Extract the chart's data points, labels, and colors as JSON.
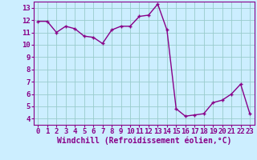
{
  "x": [
    0,
    1,
    2,
    3,
    4,
    5,
    6,
    7,
    8,
    9,
    10,
    11,
    12,
    13,
    14,
    15,
    16,
    17,
    18,
    19,
    20,
    21,
    22,
    23
  ],
  "y": [
    11.9,
    11.9,
    11.0,
    11.5,
    11.3,
    10.7,
    10.6,
    10.1,
    11.2,
    11.5,
    11.5,
    12.3,
    12.4,
    13.3,
    11.2,
    4.8,
    4.2,
    4.3,
    4.4,
    5.3,
    5.5,
    6.0,
    6.8,
    4.4
  ],
  "line_color": "#880088",
  "marker": "+",
  "xlabel": "Windchill (Refroidissement éolien,°C)",
  "xlim": [
    -0.5,
    23.5
  ],
  "ylim": [
    3.5,
    13.5
  ],
  "xtick_labels": [
    "0",
    "1",
    "2",
    "3",
    "4",
    "5",
    "6",
    "7",
    "8",
    "9",
    "10",
    "11",
    "12",
    "13",
    "14",
    "15",
    "16",
    "17",
    "18",
    "19",
    "20",
    "21",
    "22",
    "23"
  ],
  "ytick_labels": [
    "4",
    "5",
    "6",
    "7",
    "8",
    "9",
    "10",
    "11",
    "12",
    "13"
  ],
  "yticks": [
    4,
    5,
    6,
    7,
    8,
    9,
    10,
    11,
    12,
    13
  ],
  "bg_color": "#cceeff",
  "grid_color": "#99cccc",
  "tick_fontsize": 6.5,
  "xlabel_fontsize": 7,
  "line_width": 1.0,
  "marker_size": 3.5
}
